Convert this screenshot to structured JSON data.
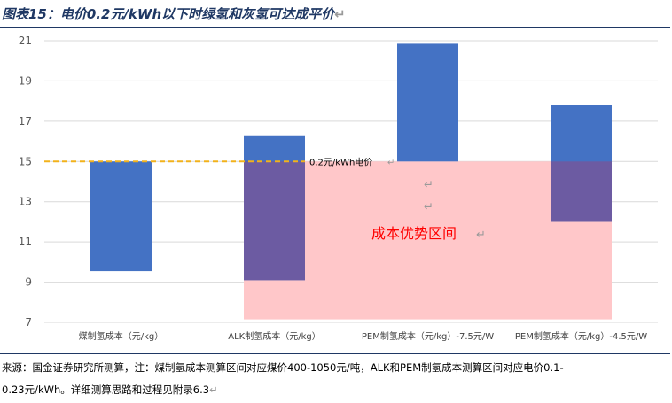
{
  "header": {
    "title": "图表15：电价0.2元/kWh以下时绿氢和灰氢可达成平价"
  },
  "chart_data": {
    "type": "bar",
    "subtype": "floating-range",
    "categories": [
      "煤制氢成本（元/kg）",
      "ALK制氢成本（元/kg）",
      "PEM制氢成本（元/kg）-7.5元/W",
      "PEM制氢成本（元/kg）-4.5元/W"
    ],
    "ranges": [
      {
        "low": 9.55,
        "high": 15.0
      },
      {
        "low": 9.1,
        "high": 16.3
      },
      {
        "low": 15.0,
        "high": 20.85
      },
      {
        "low": 12.0,
        "high": 17.8
      }
    ],
    "ylim": [
      7,
      21
    ],
    "yticks": [
      7,
      9,
      11,
      13,
      15,
      17,
      19,
      21
    ],
    "grid": true,
    "reference_line": {
      "value": 15,
      "label": "0.2元/kWh电价"
    },
    "advantage_region": {
      "low": 7.15,
      "high": 15,
      "label": "成本优势区间"
    },
    "colors": {
      "bar": "#4472c4",
      "overlap": "#6c5ba2",
      "region": "#ffc7c9",
      "reference": "#f2b21b",
      "region_label": "#ff0000",
      "grid": "#d9d9d9",
      "axis_text": "#595959"
    }
  },
  "footer": {
    "source_line1": "来源：国金证券研究所测算，注：煤制氢成本测算区间对应煤价400-1050元/吨，ALK和PEM制氢成本测算区间对应电价0.1-",
    "source_line2": "0.23元/kWh。详细测算思路和过程见附录6.3"
  }
}
